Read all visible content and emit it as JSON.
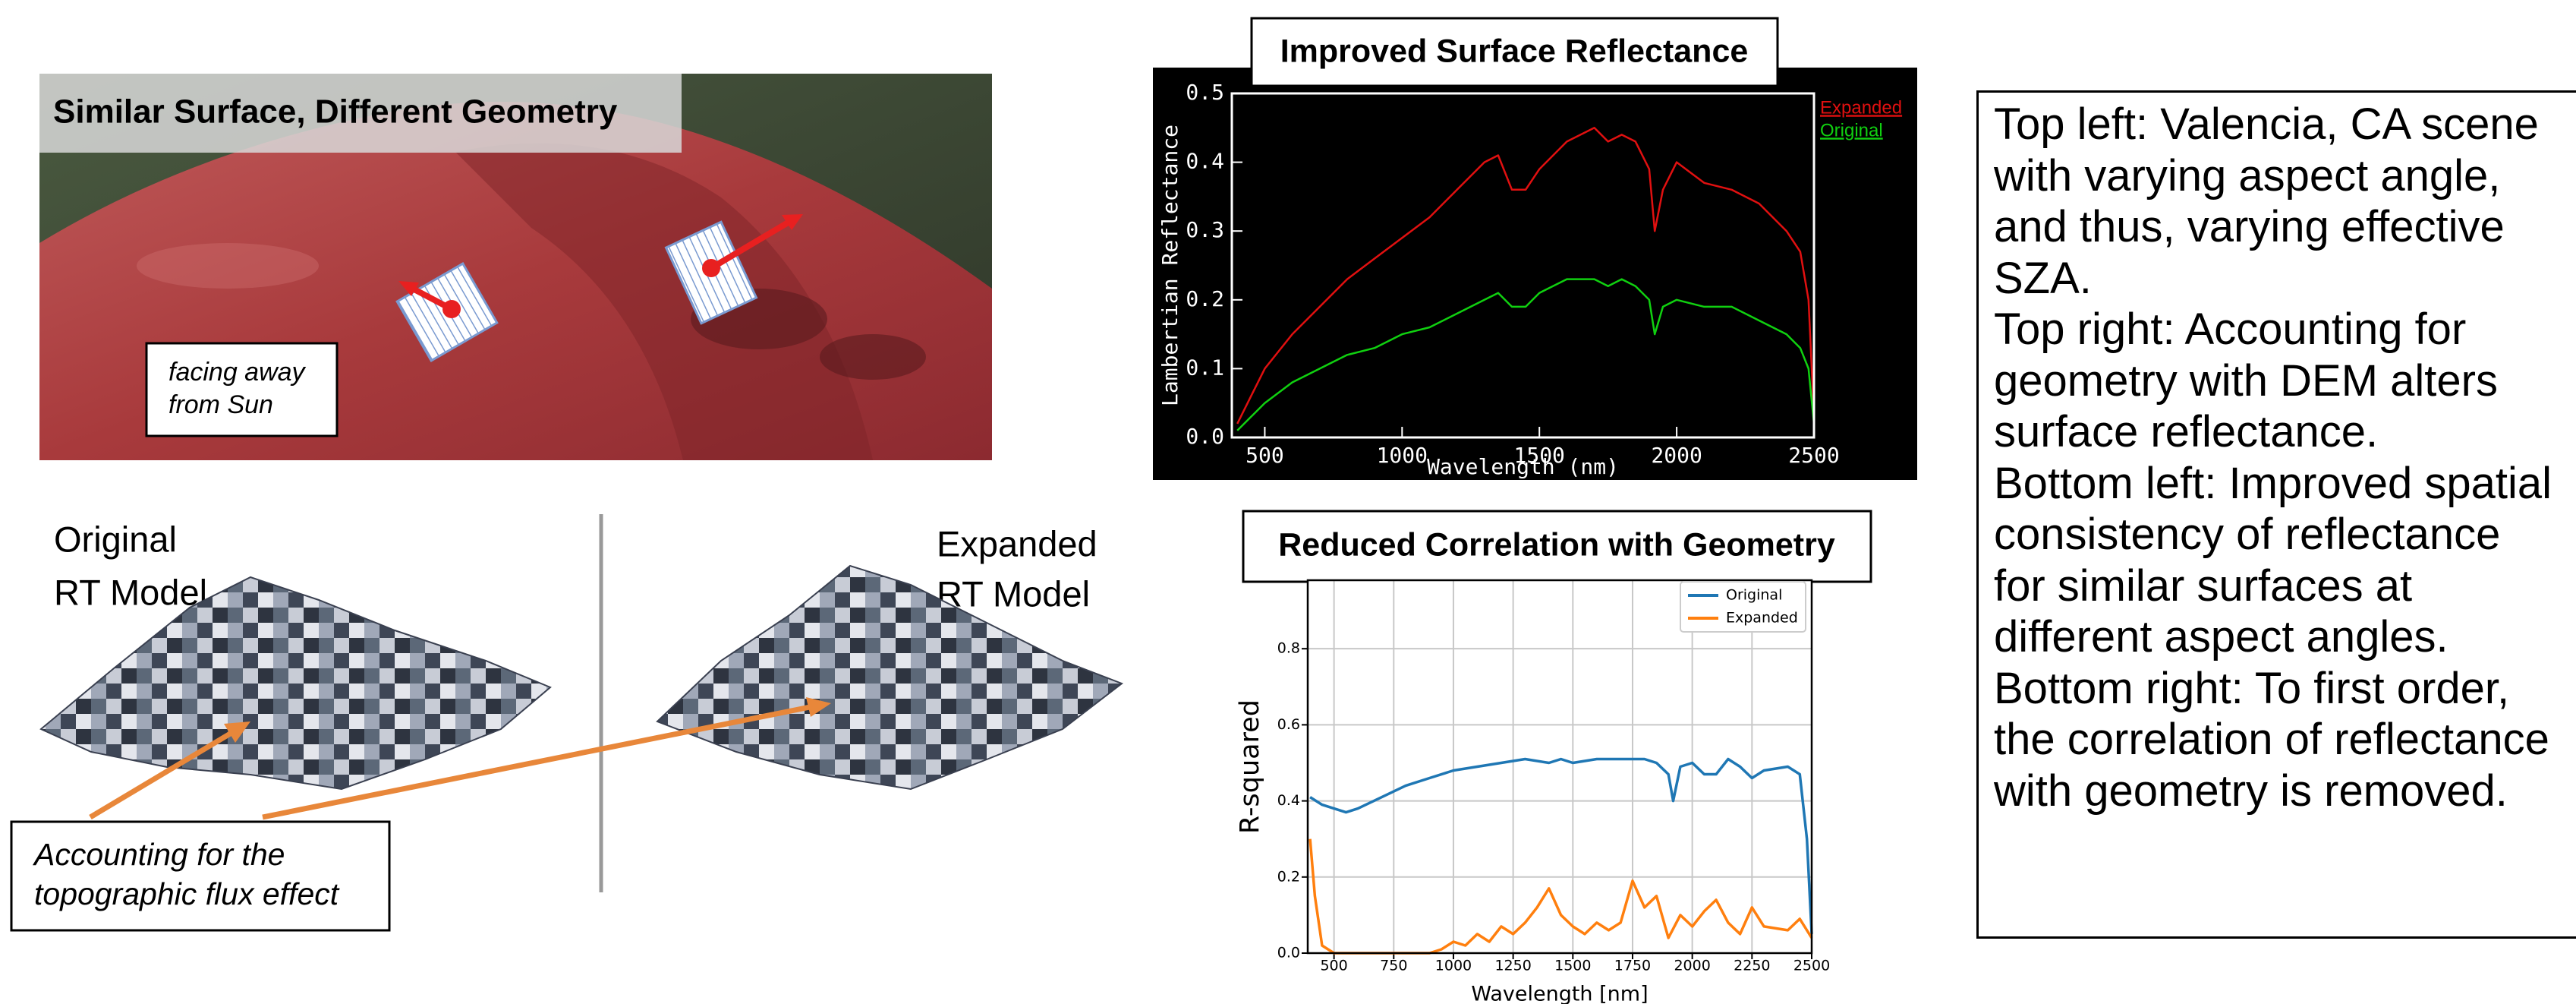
{
  "top_left": {
    "title": "Similar Surface, Different Geometry",
    "note_lines": [
      "facing away",
      "from Sun"
    ]
  },
  "bottom_left": {
    "left_label_lines": [
      "Original",
      "RT Model"
    ],
    "right_label_lines": [
      "Expanded",
      "RT Model"
    ],
    "callout_lines": [
      "Accounting for the",
      "topographic flux effect"
    ]
  },
  "chart_data": [
    {
      "type": "line",
      "title": "Improved Surface Reflectance",
      "x_label": "Wavelength (nm)",
      "y_label": "Lambertian Reflectance",
      "xlim": [
        380,
        2500
      ],
      "ylim": [
        0,
        0.5
      ],
      "xticks": [
        500,
        1000,
        1500,
        2000,
        2500
      ],
      "yticks": [
        {
          "value": 0,
          "label": "0.0"
        },
        0.1,
        0.2,
        0.3,
        0.4,
        0.5
      ],
      "grid": false,
      "legend": "outside right",
      "series": [
        {
          "name": "Expanded",
          "color": "#e01010",
          "x": [
            400,
            450,
            500,
            600,
            700,
            800,
            900,
            1000,
            1100,
            1200,
            1300,
            1350,
            1400,
            1450,
            1500,
            1600,
            1700,
            1750,
            1800,
            1850,
            1900,
            1920,
            1950,
            2000,
            2100,
            2200,
            2300,
            2400,
            2450,
            2480,
            2500
          ],
          "values": [
            0.02,
            0.06,
            0.1,
            0.15,
            0.19,
            0.23,
            0.26,
            0.29,
            0.32,
            0.36,
            0.4,
            0.41,
            0.36,
            0.36,
            0.39,
            0.43,
            0.45,
            0.43,
            0.44,
            0.43,
            0.39,
            0.3,
            0.36,
            0.4,
            0.37,
            0.36,
            0.34,
            0.3,
            0.27,
            0.2,
            0.03
          ]
        },
        {
          "name": "Original",
          "color": "#10d010",
          "x": [
            400,
            450,
            500,
            600,
            700,
            800,
            900,
            1000,
            1100,
            1200,
            1300,
            1350,
            1400,
            1450,
            1500,
            1600,
            1700,
            1750,
            1800,
            1850,
            1900,
            1920,
            1950,
            2000,
            2100,
            2200,
            2300,
            2400,
            2450,
            2480,
            2500
          ],
          "values": [
            0.01,
            0.03,
            0.05,
            0.08,
            0.1,
            0.12,
            0.13,
            0.15,
            0.16,
            0.18,
            0.2,
            0.21,
            0.19,
            0.19,
            0.21,
            0.23,
            0.23,
            0.22,
            0.23,
            0.22,
            0.2,
            0.15,
            0.19,
            0.2,
            0.19,
            0.19,
            0.17,
            0.15,
            0.13,
            0.1,
            0.02
          ]
        }
      ]
    },
    {
      "type": "line",
      "title": "Reduced Correlation with Geometry",
      "x_label": "Wavelength [nm]",
      "y_label": "R-squared",
      "xlim": [
        390,
        2500
      ],
      "ylim": [
        0,
        0.98
      ],
      "xticks": [
        500,
        750,
        1000,
        1250,
        1500,
        1750,
        2000,
        2250,
        2500
      ],
      "yticks": [
        {
          "value": 0,
          "label": "0.0"
        },
        0.2,
        0.4,
        0.6,
        0.8
      ],
      "grid": true,
      "legend": "upper right",
      "series": [
        {
          "name": "Original",
          "color": "#1f77b4",
          "x": [
            400,
            450,
            500,
            550,
            600,
            700,
            800,
            900,
            1000,
            1100,
            1200,
            1300,
            1400,
            1450,
            1500,
            1600,
            1700,
            1800,
            1850,
            1900,
            1920,
            1950,
            2000,
            2050,
            2100,
            2150,
            2200,
            2250,
            2300,
            2400,
            2450,
            2480,
            2500
          ],
          "values": [
            0.41,
            0.39,
            0.38,
            0.37,
            0.38,
            0.41,
            0.44,
            0.46,
            0.48,
            0.49,
            0.5,
            0.51,
            0.5,
            0.51,
            0.5,
            0.51,
            0.51,
            0.51,
            0.5,
            0.47,
            0.4,
            0.49,
            0.5,
            0.47,
            0.47,
            0.51,
            0.49,
            0.46,
            0.48,
            0.49,
            0.47,
            0.3,
            0.05
          ]
        },
        {
          "name": "Expanded",
          "color": "#ff7f0e",
          "x": [
            400,
            420,
            450,
            500,
            700,
            900,
            950,
            1000,
            1050,
            1100,
            1150,
            1200,
            1250,
            1300,
            1350,
            1400,
            1450,
            1500,
            1550,
            1600,
            1650,
            1700,
            1750,
            1800,
            1850,
            1900,
            1950,
            2000,
            2050,
            2100,
            2150,
            2200,
            2250,
            2300,
            2400,
            2450,
            2500
          ],
          "values": [
            0.3,
            0.15,
            0.02,
            0.0,
            0.0,
            0.0,
            0.01,
            0.03,
            0.02,
            0.05,
            0.03,
            0.07,
            0.05,
            0.08,
            0.12,
            0.17,
            0.1,
            0.07,
            0.05,
            0.08,
            0.06,
            0.08,
            0.19,
            0.12,
            0.15,
            0.04,
            0.1,
            0.07,
            0.11,
            0.14,
            0.08,
            0.05,
            0.12,
            0.07,
            0.06,
            0.09,
            0.04
          ]
        }
      ]
    }
  ],
  "description": {
    "lines": [
      "Top left: Valencia, CA scene",
      "with varying aspect angle,",
      "and thus, varying effective",
      "SZA.",
      "Top right: Accounting for",
      "geometry with DEM alters",
      "surface reflectance.",
      "Bottom left: Improved spatial",
      "consistency of reflectance",
      "for similar surfaces at",
      "different aspect angles.",
      "Bottom right: To first order,",
      "the correlation of reflectance",
      "with geometry is removed."
    ]
  }
}
